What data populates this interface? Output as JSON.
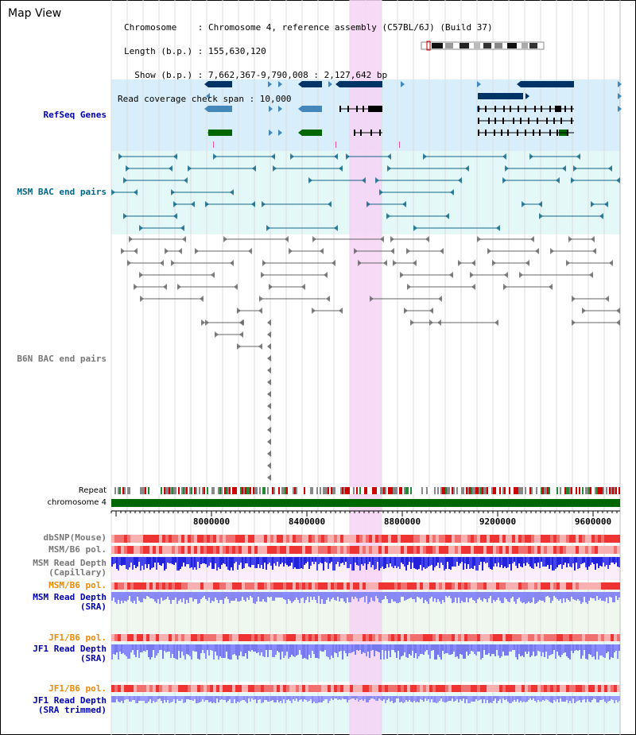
{
  "map_title": "Map View",
  "info": {
    "chromosome": "Chromosome    : Chromosome 4, reference assembly (C57BL/6J) (Build 37)",
    "length": "Length (b.p.) : 155,630,120",
    "show": "  Show (b.p.) : 7,662,367-9,790,008 : 2,127,642 bp",
    "coverage": "Read coverage check span : 10,000"
  },
  "tracks": {
    "refseq": "RefSeq Genes",
    "msm_bac": "MSM BAC end pairs",
    "b6n_bac": "B6N BAC end pairs",
    "repeat": "Repeat",
    "chromosome": "chromosome 4",
    "dbsnp": "dbSNP(Mouse)",
    "msm_pol": "MSM/B6 pol.",
    "msm_depth_cap": "MSM Read Depth\n(Capillary)",
    "msm_pol2": "MSM/B6 pol.",
    "msm_depth_sra": "MSM Read Depth\n(SRA)",
    "jf1_pol": "JF1/B6 pol.",
    "jf1_depth_sra": "JF1 Read Depth\n(SRA)",
    "jf1_pol2": "JF1/B6 pol.",
    "jf1_depth_trim": "JF1 Read Depth\n(SRA trimmed)"
  },
  "axis_ticks": [
    "8000000",
    "8400000",
    "8800000",
    "9200000",
    "9600000"
  ],
  "colors": {
    "highlight": "#f6d4f4",
    "refseq_bg": "#d8eefa",
    "bac_bg": "#e4f8f8",
    "gene_dark": "#003366",
    "gene_mid": "#4488bb",
    "gene_green": "#006600",
    "msm_feature": "#116688",
    "b6n_feature": "#666666",
    "depth_dark": "#2222dd",
    "depth_light": "#8888ff",
    "pol_red": "#ee3333"
  }
}
